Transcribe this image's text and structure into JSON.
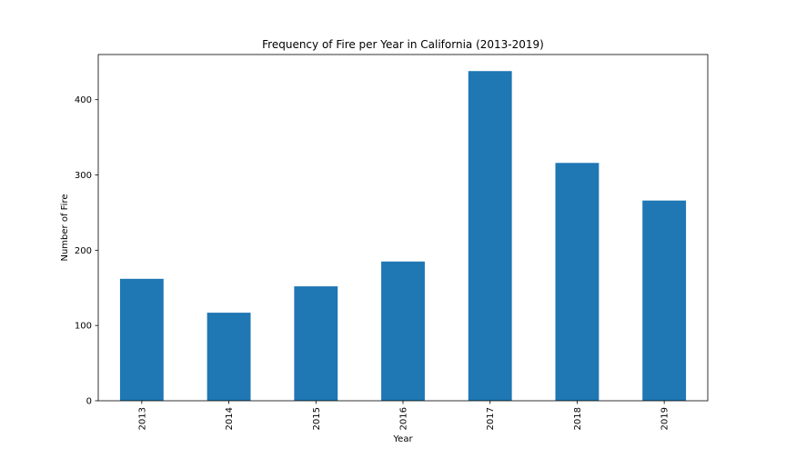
{
  "chart_data": {
    "type": "bar",
    "title": "Frequency of Fire per Year in California (2013-2019)",
    "xlabel": "Year",
    "ylabel": "Number of Fire",
    "categories": [
      "2013",
      "2014",
      "2015",
      "2016",
      "2017",
      "2018",
      "2019"
    ],
    "values": [
      162,
      117,
      152,
      185,
      438,
      316,
      266
    ],
    "ylim": [
      0,
      460
    ],
    "yticks": [
      0,
      100,
      200,
      300,
      400
    ],
    "ytick_labels": [
      "0",
      "100",
      "200",
      "300",
      "400"
    ],
    "grid": false,
    "legend": "none",
    "bar_color": "#1f77b4",
    "axis_color": "#000000",
    "background_color": "#ffffff"
  }
}
